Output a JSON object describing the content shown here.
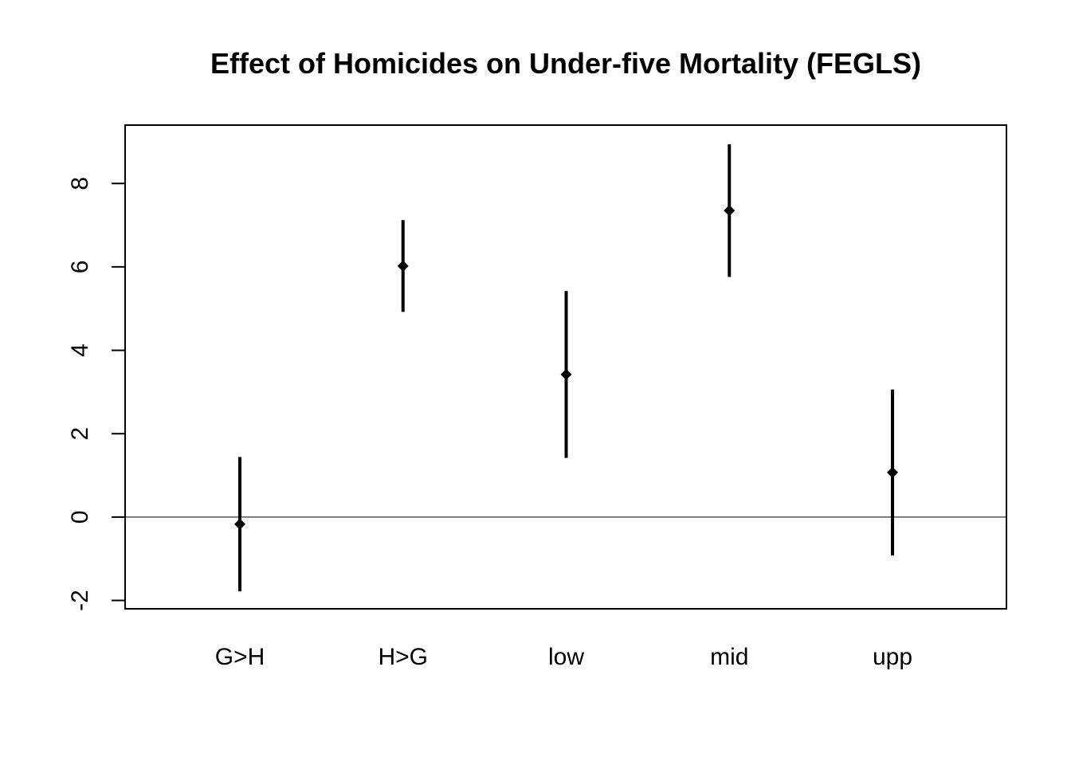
{
  "chart_data": {
    "type": "errorbar",
    "title": "Effect of Homicides on Under-five Mortality (FEGLS)",
    "xlabel": "",
    "ylabel": "",
    "categories": [
      "G>H",
      "H>G",
      "low",
      "mid",
      "upp"
    ],
    "estimates": [
      -0.17,
      6.02,
      3.42,
      7.35,
      1.07
    ],
    "lower": [
      -1.78,
      4.92,
      1.42,
      5.76,
      -0.92
    ],
    "upper": [
      1.44,
      7.12,
      5.42,
      8.94,
      3.06
    ],
    "ylim": [
      -2.2,
      9.4
    ],
    "yticks": [
      -2,
      0,
      2,
      4,
      6,
      8
    ],
    "ytick_labels": [
      "-2",
      "0",
      "2",
      "4",
      "6",
      "8"
    ],
    "reference_line": 0,
    "grid": false,
    "colors": {
      "marks": "#000000",
      "axes": "#000000",
      "background": "#ffffff"
    }
  }
}
